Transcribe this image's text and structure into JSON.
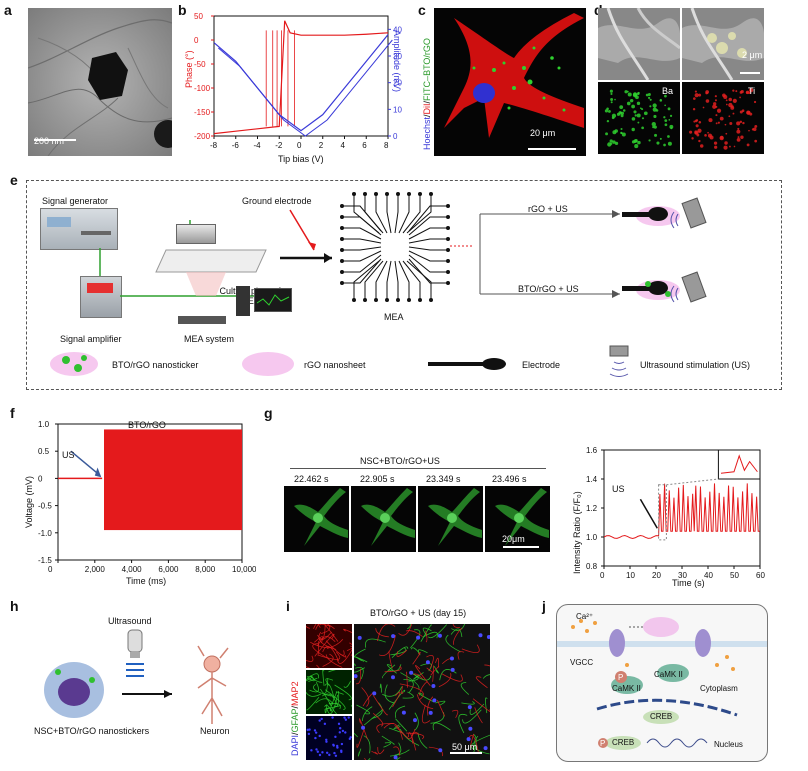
{
  "panel_labels": {
    "a": "a",
    "b": "b",
    "c": "c",
    "d": "d",
    "e": "e",
    "f": "f",
    "g": "g",
    "h": "h",
    "i": "i",
    "j": "j"
  },
  "a": {
    "scale_bar": "200 nm"
  },
  "b": {
    "ylabel_left": "Phase (°)",
    "ylabel_right": "Amplitude (mV)",
    "xlabel": "Tip bias (V)",
    "x_ticks": [
      "-8",
      "-6",
      "-4",
      "-2",
      "0",
      "2",
      "4",
      "6",
      "8"
    ],
    "y_left_ticks": [
      "50",
      "0",
      "-50",
      "-100",
      "-150",
      "-200"
    ],
    "y_right_ticks": [
      "40",
      "30",
      "20",
      "10",
      "0"
    ],
    "colors": {
      "phase": "#e41a1c",
      "amplitude": "#3a3ad8"
    }
  },
  "c": {
    "ylabel_parts": [
      "Hoechst",
      "/",
      "DiI",
      "/",
      "FITC–BTO/rGO"
    ],
    "scale_bar": "20 μm"
  },
  "d": {
    "scale_bar": "2 μm",
    "ba": "Ba",
    "ti": "Ti"
  },
  "e": {
    "signal_generator": "Signal generator",
    "ground_electrode": "Ground electrode",
    "culture_plate": "Culture plate of MEA",
    "signal_amplifier": "Signal amplifier",
    "mea_system": "MEA system",
    "mea": "MEA",
    "rgo_us": "rGO + US",
    "bto_rgo_us": "BTO/rGO + US",
    "legend_bto": "BTO/rGO nanosticker",
    "legend_rgo": "rGO nanosheet",
    "legend_electrode": "Electrode",
    "legend_us": "Ultrasound stimulation (US)"
  },
  "f": {
    "title": "BTO/rGO",
    "us_label": "US",
    "ylabel": "Voltage (mV)",
    "xlabel": "Time (ms)",
    "x_ticks": [
      "0",
      "2,000",
      "4,000",
      "6,000",
      "8,000",
      "10,000"
    ],
    "y_ticks": [
      "1.0",
      "0.5",
      "0",
      "-0.5",
      "-1.0",
      "-1.5"
    ]
  },
  "g": {
    "condition": "NSC+BTO/rGO+US",
    "times": [
      "22.462 s",
      "22.905 s",
      "23.349 s",
      "23.496 s"
    ],
    "scale_bar": "20μm",
    "us_label": "US",
    "ylabel": "Intensity Ratio (F/F₀)",
    "xlabel": "Time (s)",
    "x_ticks": [
      "0",
      "10",
      "20",
      "30",
      "40",
      "50",
      "60"
    ],
    "y_ticks": [
      "1.6",
      "1.4",
      "1.2",
      "1.0",
      "0.8"
    ]
  },
  "h": {
    "ultrasound": "Ultrasound",
    "caption": "NSC+BTO/rGO nanostickers",
    "neuron": "Neuron"
  },
  "i": {
    "title": "BTO/rGO + US (day 15)",
    "ylabel_parts": [
      "DAPI",
      "/",
      "GFAP",
      "/",
      "MAP2"
    ],
    "scale_bar": "50 μm"
  },
  "j": {
    "ca": "Ca²⁺",
    "vgcc": "VGCC",
    "camk": "CaMK II",
    "camk2": "CaMK II",
    "cytoplasm": "Cytoplasm",
    "creb": "CREB",
    "creb2": "CREB",
    "p": "P",
    "p2": "P",
    "nucleus": "Nucleus"
  },
  "chart_data": [
    {
      "type": "line",
      "title": "",
      "xlabel": "Tip bias (V)",
      "ylabel": "Phase (°)",
      "xlim": [
        -8,
        8
      ],
      "ylim": [
        -200,
        50
      ],
      "series": [
        {
          "name": "Phase",
          "x": [
            -8,
            -6,
            -4,
            -2,
            -1.5,
            -1,
            0,
            2,
            4,
            6,
            8
          ],
          "values": [
            -195,
            -190,
            -185,
            -180,
            40,
            15,
            10,
            10,
            10,
            12,
            15
          ]
        },
        {
          "name": "Amplitude",
          "x": [
            -8,
            -6,
            -4,
            -2,
            0,
            2,
            4,
            6,
            8
          ],
          "values": [
            35,
            28,
            18,
            8,
            2,
            8,
            18,
            28,
            38
          ]
        }
      ]
    },
    {
      "type": "line",
      "title": "BTO/rGO",
      "xlabel": "Time (ms)",
      "ylabel": "Voltage (mV)",
      "xlim": [
        0,
        10000
      ],
      "ylim": [
        -1.5,
        1.0
      ],
      "series": [
        {
          "name": "BTO/rGO",
          "x": [
            0,
            2400,
            2500,
            10000
          ],
          "values": [
            0,
            0,
            0.9,
            0.9
          ]
        }
      ]
    },
    {
      "type": "line",
      "title": "",
      "xlabel": "Time (s)",
      "ylabel": "Intensity Ratio (F/F₀)",
      "xlim": [
        0,
        60
      ],
      "ylim": [
        0.8,
        1.6
      ],
      "series": [
        {
          "name": "ratio",
          "x": [
            0,
            10,
            20,
            22,
            23,
            24,
            26,
            30,
            40,
            50,
            60
          ],
          "values": [
            1.0,
            1.01,
            1.03,
            1.15,
            1.35,
            1.05,
            1.3,
            1.25,
            1.3,
            1.25,
            1.3
          ]
        }
      ]
    }
  ]
}
